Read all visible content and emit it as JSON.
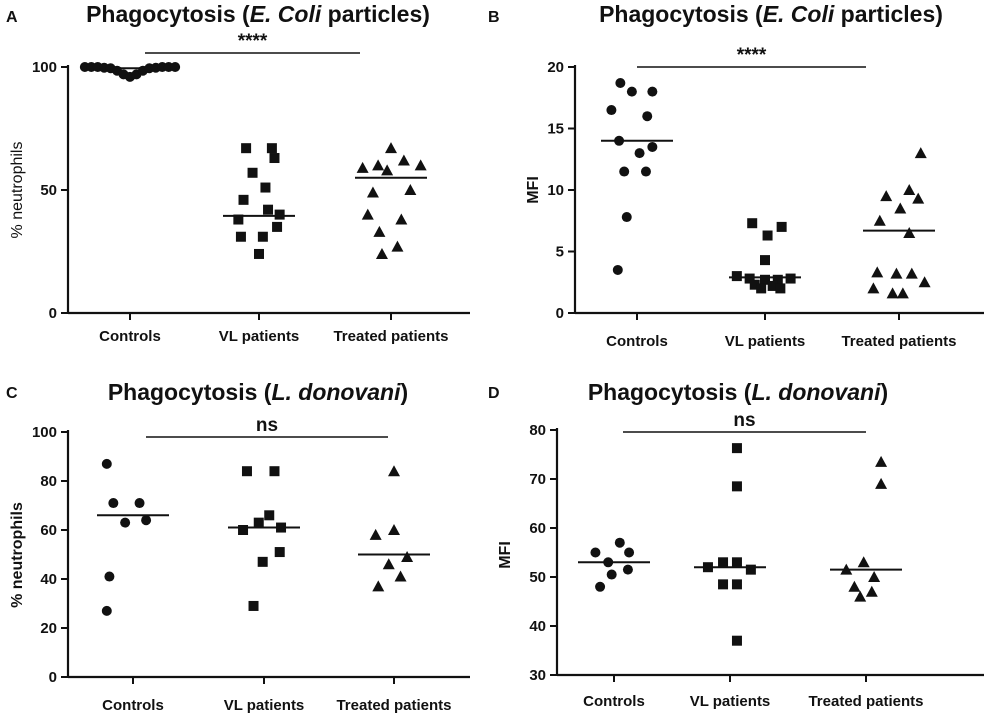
{
  "chart_data": [
    {
      "panel": "A",
      "type": "scatter",
      "title_prefix": "Phagocytosis (",
      "title_italic": "E. Coli",
      "title_suffix": " particles)",
      "ylabel": "% neutrophils",
      "ylim": [
        0,
        100
      ],
      "yticks": [
        0,
        50,
        100
      ],
      "categories": [
        "Controls",
        "VL patients",
        "Treated patients"
      ],
      "significance": "****",
      "sig_from": 0,
      "sig_to": 2,
      "series": [
        {
          "name": "Controls",
          "marker": "circle",
          "median": 99.5,
          "points": [
            [
              -0.35,
              100
            ],
            [
              -0.3,
              100
            ],
            [
              -0.25,
              100
            ],
            [
              -0.2,
              99.7
            ],
            [
              -0.15,
              99.5
            ],
            [
              -0.1,
              98.5
            ],
            [
              -0.05,
              97
            ],
            [
              0,
              96
            ],
            [
              0.05,
              97
            ],
            [
              0.1,
              98.5
            ],
            [
              0.15,
              99.5
            ],
            [
              0.2,
              99.7
            ],
            [
              0.25,
              100
            ],
            [
              0.3,
              100
            ],
            [
              0.35,
              100
            ]
          ]
        },
        {
          "name": "VL patients",
          "marker": "square",
          "median": 39.5,
          "points": [
            [
              -0.1,
              67
            ],
            [
              0.1,
              67
            ],
            [
              0.12,
              63
            ],
            [
              -0.05,
              57
            ],
            [
              0.05,
              51
            ],
            [
              -0.12,
              46
            ],
            [
              0.07,
              42
            ],
            [
              0.16,
              40
            ],
            [
              -0.16,
              38
            ],
            [
              0.14,
              35
            ],
            [
              -0.14,
              31
            ],
            [
              0.03,
              31
            ],
            [
              0,
              24
            ]
          ]
        },
        {
          "name": "Treated patients",
          "marker": "triangle",
          "median": 55,
          "points": [
            [
              0,
              67
            ],
            [
              -0.22,
              59
            ],
            [
              -0.1,
              60
            ],
            [
              0.1,
              62
            ],
            [
              0.23,
              60
            ],
            [
              -0.03,
              58
            ],
            [
              -0.14,
              49
            ],
            [
              0.15,
              50
            ],
            [
              -0.18,
              40
            ],
            [
              0.08,
              38
            ],
            [
              -0.09,
              33
            ],
            [
              0.05,
              27
            ],
            [
              -0.07,
              24
            ]
          ]
        }
      ]
    },
    {
      "panel": "B",
      "type": "scatter",
      "title_prefix": "Phagocytosis (",
      "title_italic": "E. Coli",
      "title_suffix": " particles)",
      "ylabel": "MFI",
      "ylim": [
        0,
        20
      ],
      "yticks": [
        0,
        5,
        10,
        15,
        20
      ],
      "categories": [
        "Controls",
        "VL patients",
        "Treated patients"
      ],
      "significance": "****",
      "sig_from": 0,
      "sig_to": 2,
      "series": [
        {
          "name": "Controls",
          "marker": "circle",
          "median": 14,
          "points": [
            [
              -0.13,
              18.7
            ],
            [
              -0.04,
              18
            ],
            [
              0.12,
              18
            ],
            [
              -0.2,
              16.5
            ],
            [
              0.08,
              16
            ],
            [
              -0.14,
              14
            ],
            [
              0.12,
              13.5
            ],
            [
              0.02,
              13
            ],
            [
              -0.1,
              11.5
            ],
            [
              0.07,
              11.5
            ],
            [
              -0.08,
              7.8
            ],
            [
              -0.15,
              3.5
            ]
          ]
        },
        {
          "name": "VL patients",
          "marker": "square",
          "median": 2.9,
          "points": [
            [
              -0.1,
              7.3
            ],
            [
              0.13,
              7
            ],
            [
              0.02,
              6.3
            ],
            [
              0,
              4.3
            ],
            [
              -0.22,
              3
            ],
            [
              -0.12,
              2.8
            ],
            [
              0,
              2.7
            ],
            [
              0.1,
              2.7
            ],
            [
              0.2,
              2.8
            ],
            [
              -0.08,
              2.3
            ],
            [
              0.06,
              2.2
            ],
            [
              -0.03,
              2
            ],
            [
              0.12,
              2
            ]
          ]
        },
        {
          "name": "Treated patients",
          "marker": "triangle",
          "median": 6.7,
          "points": [
            [
              0.17,
              13
            ],
            [
              0.08,
              10
            ],
            [
              -0.1,
              9.5
            ],
            [
              0.15,
              9.3
            ],
            [
              0.01,
              8.5
            ],
            [
              -0.15,
              7.5
            ],
            [
              0.08,
              6.5
            ],
            [
              -0.17,
              3.3
            ],
            [
              0.1,
              3.2
            ],
            [
              -0.02,
              3.2
            ],
            [
              -0.2,
              2
            ],
            [
              0.2,
              2.5
            ],
            [
              -0.05,
              1.6
            ],
            [
              0.03,
              1.6
            ]
          ]
        }
      ]
    },
    {
      "panel": "C",
      "type": "scatter",
      "title_prefix": "Phagocytosis (",
      "title_italic": "L. donovani",
      "title_suffix": ")",
      "ylabel": "% neutrophils",
      "ylim": [
        0,
        100
      ],
      "yticks": [
        0,
        20,
        40,
        60,
        80,
        100
      ],
      "categories": [
        "Controls",
        "VL patients",
        "Treated patients"
      ],
      "significance": "ns",
      "sig_from": 0,
      "sig_to": 2,
      "series": [
        {
          "name": "Controls",
          "marker": "circle",
          "median": 66,
          "points": [
            [
              -0.2,
              87
            ],
            [
              -0.15,
              71
            ],
            [
              0.05,
              71
            ],
            [
              -0.06,
              63
            ],
            [
              0.1,
              64
            ],
            [
              -0.18,
              41
            ],
            [
              -0.2,
              27
            ]
          ]
        },
        {
          "name": "VL patients",
          "marker": "square",
          "median": 61,
          "points": [
            [
              -0.13,
              84
            ],
            [
              0.08,
              84
            ],
            [
              -0.04,
              63
            ],
            [
              0.04,
              66
            ],
            [
              -0.16,
              60
            ],
            [
              0.13,
              61
            ],
            [
              0.12,
              51
            ],
            [
              -0.01,
              47
            ],
            [
              -0.08,
              29
            ]
          ]
        },
        {
          "name": "Treated patients",
          "marker": "triangle",
          "median": 50,
          "points": [
            [
              0,
              84
            ],
            [
              -0.14,
              58
            ],
            [
              0,
              60
            ],
            [
              0.1,
              49
            ],
            [
              -0.04,
              46
            ],
            [
              0.05,
              41
            ],
            [
              -0.12,
              37
            ]
          ]
        }
      ]
    },
    {
      "panel": "D",
      "type": "scatter",
      "title_prefix": "Phagocytosis (",
      "title_italic": "L. donovani",
      "title_suffix": ")",
      "ylabel": "MFI",
      "ylim": [
        30,
        80
      ],
      "yticks": [
        30,
        40,
        50,
        60,
        70,
        80
      ],
      "categories": [
        "Controls",
        "VL patients",
        "Treated patients"
      ],
      "significance": "ns",
      "sig_from": 0,
      "sig_to": 2,
      "series": [
        {
          "name": "Controls",
          "marker": "circle",
          "median": 53,
          "points": [
            [
              0.05,
              57
            ],
            [
              -0.16,
              55
            ],
            [
              0.13,
              55
            ],
            [
              -0.05,
              53
            ],
            [
              0.12,
              51.5
            ],
            [
              -0.02,
              50.5
            ],
            [
              -0.12,
              48
            ]
          ]
        },
        {
          "name": "VL patients",
          "marker": "square",
          "median": 52,
          "points": [
            [
              0.06,
              76.3
            ],
            [
              0.06,
              68.5
            ],
            [
              -0.06,
              53
            ],
            [
              0.06,
              53
            ],
            [
              0.18,
              51.5
            ],
            [
              -0.19,
              52
            ],
            [
              -0.06,
              48.5
            ],
            [
              0.06,
              48.5
            ],
            [
              0.06,
              37
            ]
          ]
        },
        {
          "name": "Treated patients",
          "marker": "triangle",
          "median": 51.5,
          "points": [
            [
              0.13,
              73.5
            ],
            [
              0.13,
              69
            ],
            [
              -0.02,
              53
            ],
            [
              -0.17,
              51.5
            ],
            [
              0.07,
              50
            ],
            [
              -0.1,
              48
            ],
            [
              0.05,
              47
            ],
            [
              -0.05,
              46
            ]
          ]
        }
      ]
    }
  ]
}
